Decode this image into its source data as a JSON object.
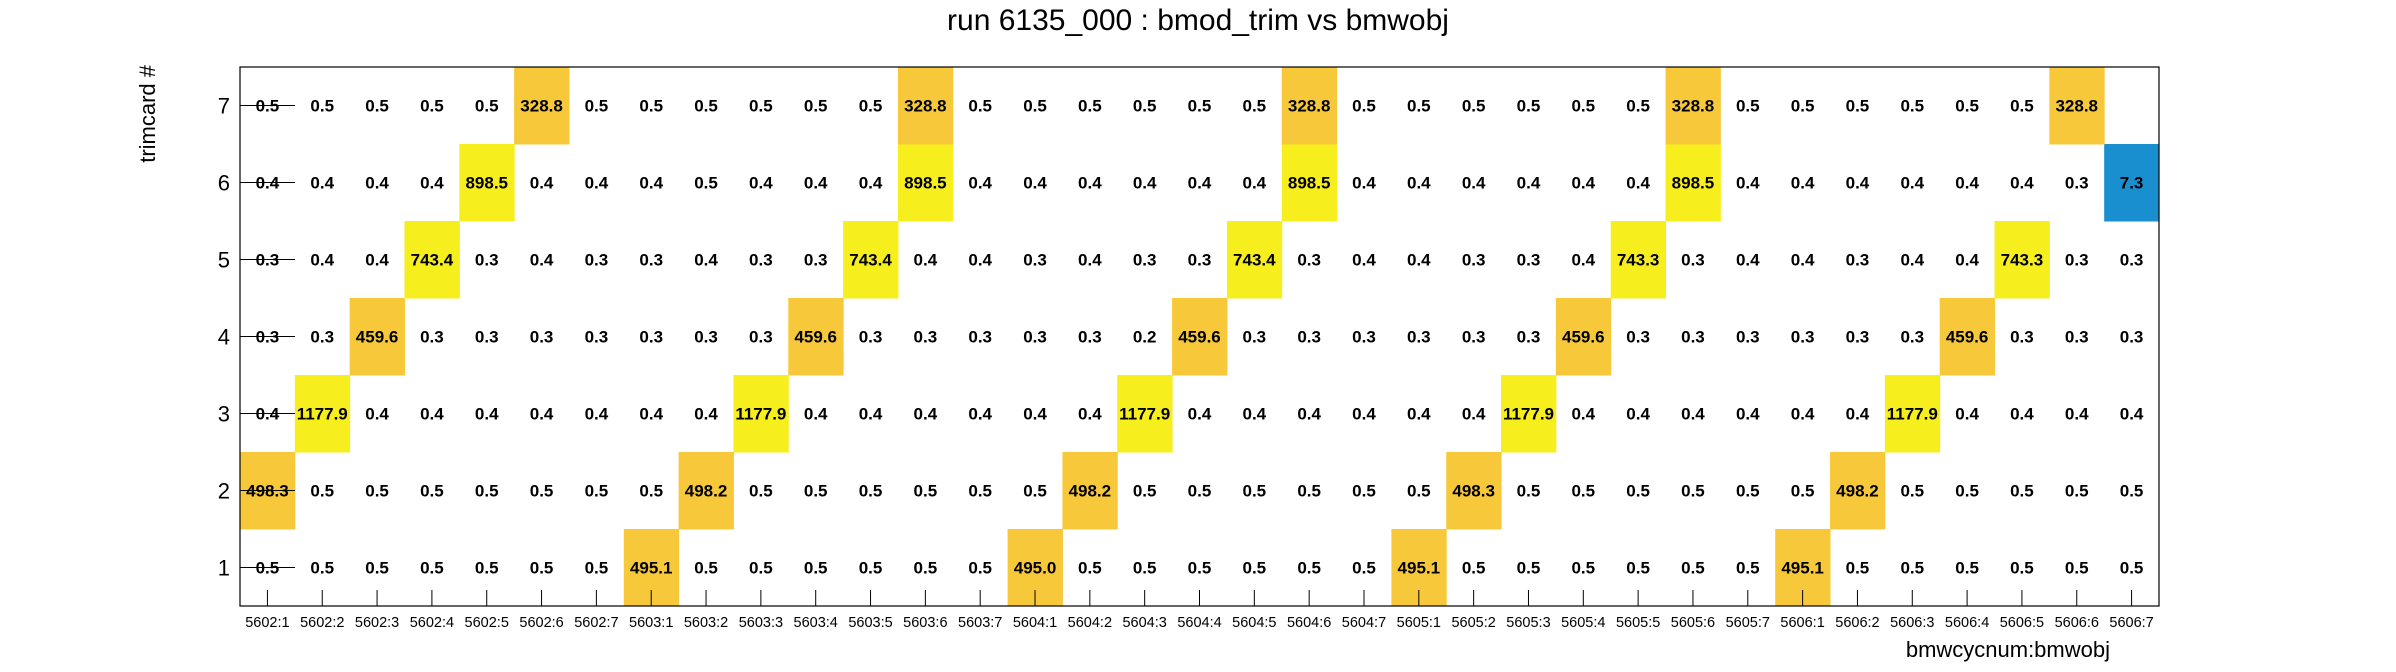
{
  "chart_data": {
    "type": "heatmap",
    "title": "run 6135_000 : bmod_trim vs bmwobj",
    "xlabel": "bmwcycnum:bmwobj",
    "ylabel": "trimcard #",
    "x_categories": [
      "5602:1",
      "5602:2",
      "5602:3",
      "5602:4",
      "5602:5",
      "5602:6",
      "5602:7",
      "5603:1",
      "5603:2",
      "5603:3",
      "5603:4",
      "5603:5",
      "5603:6",
      "5603:7",
      "5604:1",
      "5604:2",
      "5604:3",
      "5604:4",
      "5604:5",
      "5604:6",
      "5604:7",
      "5605:1",
      "5605:2",
      "5605:3",
      "5605:4",
      "5605:5",
      "5605:6",
      "5605:7",
      "5606:1",
      "5606:2",
      "5606:3",
      "5606:4",
      "5606:5",
      "5606:6",
      "5606:7"
    ],
    "y_categories": [
      "1",
      "2",
      "3",
      "4",
      "5",
      "6",
      "7"
    ],
    "values": [
      [
        "0.5",
        "0.5",
        "0.5",
        "0.5",
        "0.5",
        "0.5",
        "0.5",
        "495.1",
        "0.5",
        "0.5",
        "0.5",
        "0.5",
        "0.5",
        "0.5",
        "495.0",
        "0.5",
        "0.5",
        "0.5",
        "0.5",
        "0.5",
        "0.5",
        "495.1",
        "0.5",
        "0.5",
        "0.5",
        "0.5",
        "0.5",
        "0.5",
        "495.1",
        "0.5",
        "0.5",
        "0.5",
        "0.5",
        "0.5",
        "0.5"
      ],
      [
        "498.3",
        "0.5",
        "0.5",
        "0.5",
        "0.5",
        "0.5",
        "0.5",
        "0.5",
        "498.2",
        "0.5",
        "0.5",
        "0.5",
        "0.5",
        "0.5",
        "0.5",
        "498.2",
        "0.5",
        "0.5",
        "0.5",
        "0.5",
        "0.5",
        "0.5",
        "498.3",
        "0.5",
        "0.5",
        "0.5",
        "0.5",
        "0.5",
        "0.5",
        "498.2",
        "0.5",
        "0.5",
        "0.5",
        "0.5",
        "0.5"
      ],
      [
        "0.4",
        "1177.9",
        "0.4",
        "0.4",
        "0.4",
        "0.4",
        "0.4",
        "0.4",
        "0.4",
        "1177.9",
        "0.4",
        "0.4",
        "0.4",
        "0.4",
        "0.4",
        "0.4",
        "1177.9",
        "0.4",
        "0.4",
        "0.4",
        "0.4",
        "0.4",
        "0.4",
        "1177.9",
        "0.4",
        "0.4",
        "0.4",
        "0.4",
        "0.4",
        "0.4",
        "1177.9",
        "0.4",
        "0.4",
        "0.4",
        "0.4"
      ],
      [
        "0.3",
        "0.3",
        "459.6",
        "0.3",
        "0.3",
        "0.3",
        "0.3",
        "0.3",
        "0.3",
        "0.3",
        "459.6",
        "0.3",
        "0.3",
        "0.3",
        "0.3",
        "0.3",
        "0.2",
        "459.6",
        "0.3",
        "0.3",
        "0.3",
        "0.3",
        "0.3",
        "0.3",
        "459.6",
        "0.3",
        "0.3",
        "0.3",
        "0.3",
        "0.3",
        "0.3",
        "459.6",
        "0.3",
        "0.3",
        "0.3"
      ],
      [
        "0.3",
        "0.4",
        "0.4",
        "743.4",
        "0.3",
        "0.4",
        "0.3",
        "0.3",
        "0.4",
        "0.3",
        "0.3",
        "743.4",
        "0.4",
        "0.4",
        "0.3",
        "0.4",
        "0.3",
        "0.3",
        "743.4",
        "0.3",
        "0.4",
        "0.4",
        "0.3",
        "0.3",
        "0.4",
        "743.3",
        "0.3",
        "0.4",
        "0.4",
        "0.3",
        "0.4",
        "0.4",
        "743.3",
        "0.3",
        "0.3"
      ],
      [
        "0.4",
        "0.4",
        "0.4",
        "0.4",
        "898.5",
        "0.4",
        "0.4",
        "0.4",
        "0.5",
        "0.4",
        "0.4",
        "0.4",
        "898.5",
        "0.4",
        "0.4",
        "0.4",
        "0.4",
        "0.4",
        "0.4",
        "898.5",
        "0.4",
        "0.4",
        "0.4",
        "0.4",
        "0.4",
        "0.4",
        "898.5",
        "0.4",
        "0.4",
        "0.4",
        "0.4",
        "0.4",
        "0.4",
        "0.3",
        "7.3"
      ],
      [
        "0.5",
        "0.5",
        "0.5",
        "0.5",
        "0.5",
        "328.8",
        "0.5",
        "0.5",
        "0.5",
        "0.5",
        "0.5",
        "0.5",
        "328.8",
        "0.5",
        "0.5",
        "0.5",
        "0.5",
        "0.5",
        "0.5",
        "328.8",
        "0.5",
        "0.5",
        "0.5",
        "0.5",
        "0.5",
        "0.5",
        "328.8",
        "0.5",
        "0.5",
        "0.5",
        "0.5",
        "0.5",
        "0.5",
        "328.8"
      ]
    ],
    "colors": {
      "low": "#1a8fd0",
      "mid": "#f7c93a",
      "high": "#f7ee1e",
      "frame": "#000000"
    },
    "color_rule": "cells above 1 are filled; 7.3 blue, ~300-500 amber, ~700-1200 yellow",
    "grid": false
  }
}
